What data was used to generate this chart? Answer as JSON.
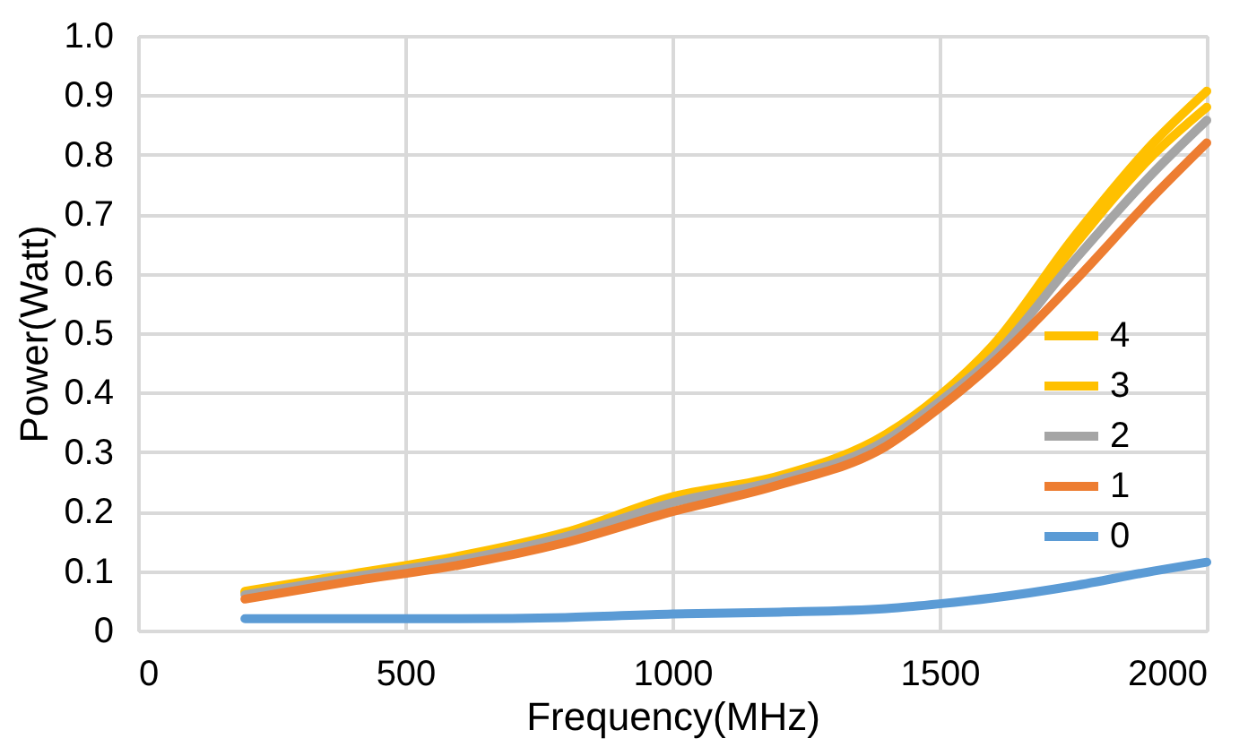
{
  "chart_data": {
    "type": "line",
    "xlabel": "Frequency(MHz)",
    "ylabel": "Power(Watt)",
    "x": [
      200,
      400,
      600,
      800,
      1000,
      1200,
      1400,
      1500,
      1600,
      1750,
      1900,
      2000
    ],
    "series": [
      {
        "name": "4",
        "color": "#ffc000",
        "values": [
          0.066,
          0.095,
          0.125,
          0.165,
          0.225,
          0.26,
          0.33,
          0.395,
          0.48,
          0.66,
          0.82,
          0.907
        ]
      },
      {
        "name": "3",
        "color": "#ffc000",
        "values": [
          0.064,
          0.093,
          0.122,
          0.162,
          0.22,
          0.257,
          0.325,
          0.39,
          0.47,
          0.645,
          0.8,
          0.88
        ]
      },
      {
        "name": "2",
        "color": "#a5a5a5",
        "values": [
          0.06,
          0.09,
          0.118,
          0.158,
          0.215,
          0.253,
          0.32,
          0.385,
          0.46,
          0.62,
          0.77,
          0.858
        ]
      },
      {
        "name": "1",
        "color": "#ed7d31",
        "values": [
          0.053,
          0.083,
          0.11,
          0.148,
          0.2,
          0.245,
          0.31,
          0.375,
          0.45,
          0.585,
          0.73,
          0.82
        ]
      },
      {
        "name": "0",
        "color": "#5b9bd5",
        "values": [
          0.02,
          0.02,
          0.02,
          0.022,
          0.028,
          0.031,
          0.037,
          0.045,
          0.055,
          0.075,
          0.1,
          0.115
        ]
      }
    ],
    "xlim": [
      0,
      2000
    ],
    "xticks": [
      0,
      500,
      1000,
      1500,
      2000
    ],
    "ylim": [
      0,
      1
    ],
    "yticks": [
      0,
      0.1,
      0.2,
      0.3,
      0.4,
      0.5,
      0.6,
      0.7,
      0.8,
      0.9,
      {
        "value": 1,
        "label": "1.0"
      }
    ],
    "grid": true,
    "legend": "bottom right",
    "marker": "none",
    "line_style": "solid"
  }
}
